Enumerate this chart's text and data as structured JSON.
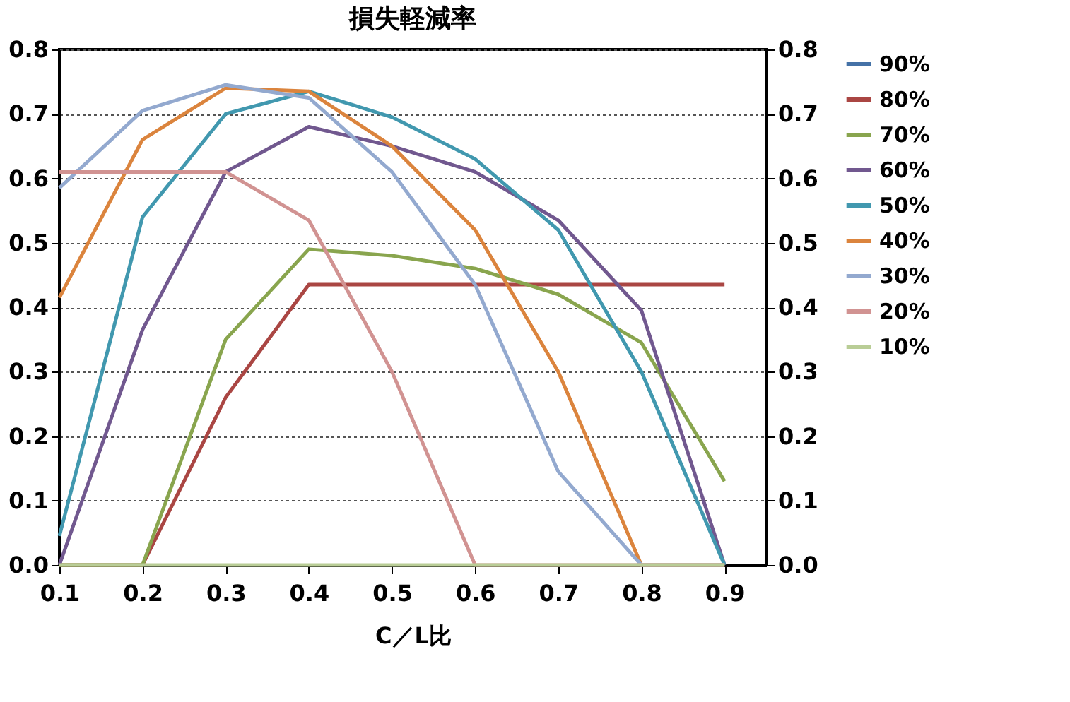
{
  "chart_data": {
    "type": "line",
    "title": "損失軽減率",
    "xlabel": "C／L比",
    "categories": [
      "0.1",
      "0.2",
      "0.3",
      "0.4",
      "0.5",
      "0.6",
      "0.7",
      "0.8",
      "0.9"
    ],
    "series": [
      {
        "name": "90%",
        "color": "#4572a7",
        "values": [
          null,
          null,
          null,
          null,
          null,
          null,
          null,
          null,
          null
        ]
      },
      {
        "name": "80%",
        "color": "#aa4643",
        "values": [
          0,
          0,
          0.26,
          0.435,
          0.435,
          0.435,
          0.435,
          0.435,
          0.435
        ]
      },
      {
        "name": "70%",
        "color": "#89a54e",
        "values": [
          0,
          0,
          0.35,
          0.49,
          0.48,
          0.46,
          0.42,
          0.345,
          0.13
        ]
      },
      {
        "name": "60%",
        "color": "#71588f",
        "values": [
          0,
          0.365,
          0.61,
          0.68,
          0.65,
          0.61,
          0.535,
          0.395,
          0
        ]
      },
      {
        "name": "50%",
        "color": "#4198af",
        "values": [
          0.045,
          0.54,
          0.7,
          0.735,
          0.695,
          0.63,
          0.52,
          0.3,
          0
        ]
      },
      {
        "name": "40%",
        "color": "#db843d",
        "values": [
          0.415,
          0.66,
          0.74,
          0.735,
          0.65,
          0.52,
          0.3,
          0,
          0
        ]
      },
      {
        "name": "30%",
        "color": "#93a9cf",
        "values": [
          0.585,
          0.705,
          0.745,
          0.725,
          0.61,
          0.435,
          0.145,
          0,
          0
        ]
      },
      {
        "name": "20%",
        "color": "#d19392",
        "values": [
          0.61,
          0.61,
          0.61,
          0.535,
          0.3,
          0,
          0,
          0,
          0
        ]
      },
      {
        "name": "10%",
        "color": "#b9cd96",
        "values": [
          0,
          0,
          0,
          0,
          0,
          0,
          0,
          0,
          0
        ]
      }
    ],
    "ylim": [
      0,
      0.8
    ],
    "yticks": [
      {
        "value": 0,
        "label": "0.0"
      },
      0.1,
      0.2,
      0.3,
      0.4,
      0.5,
      0.6,
      0.7,
      0.8
    ],
    "y2lim": [
      0,
      0.8
    ],
    "y2ticks": [
      {
        "value": 0,
        "label": "0.0"
      },
      0.1,
      0.2,
      0.3,
      0.4,
      0.5,
      0.6,
      0.7,
      0.8
    ],
    "grid": "y",
    "legend": "right",
    "marker": "none",
    "line_style": "solid"
  }
}
